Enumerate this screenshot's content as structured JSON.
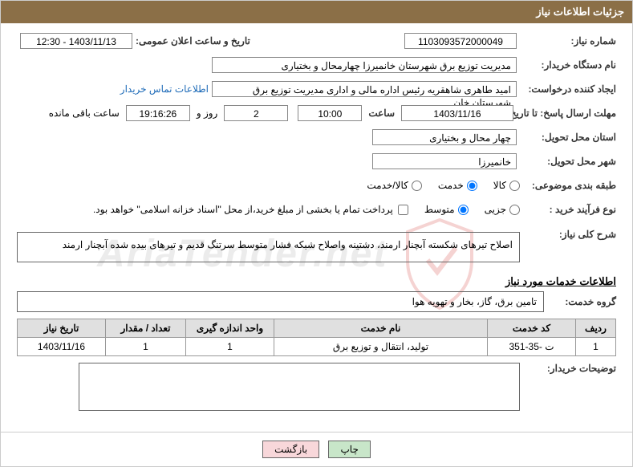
{
  "header": {
    "title": "جزئیات اطلاعات نیاز"
  },
  "fields": {
    "need_no_label": "شماره نیاز:",
    "need_no": "1103093572000049",
    "announce_label": "تاریخ و ساعت اعلان عمومی:",
    "announce_dt": "1403/11/13 - 12:30",
    "buyer_org_label": "نام دستگاه خریدار:",
    "buyer_org": "مدیریت توزیع برق شهرستان خانمیرزا چهارمحال و بختیاری",
    "requester_label": "ایجاد کننده درخواست:",
    "requester": "امید طاهری شاهقریه رئیس اداره مالی و اداری مدیریت توزیع برق شهرستان خان",
    "buyer_contact_link": "اطلاعات تماس خریدار",
    "deadline_label": "مهلت ارسال پاسخ: تا تاریخ:",
    "deadline_date": "1403/11/16",
    "time_label": "ساعت",
    "deadline_time": "10:00",
    "days_count": "2",
    "days_and": "روز و",
    "remain_time": "19:16:26",
    "remain_label": "ساعت باقی مانده",
    "province_label": "استان محل تحویل:",
    "province": "چهار محال و بختیاری",
    "city_label": "شهر محل تحویل:",
    "city": "خانمیرزا",
    "cat_label": "طبقه بندی موضوعی:",
    "cat_goods": "کالا",
    "cat_service": "خدمت",
    "cat_both": "کالا/خدمت",
    "process_label": "نوع فرآیند خرید :",
    "process_small": "جزیی",
    "process_mid": "متوسط",
    "pay_note": "پرداخت تمام یا بخشی از مبلغ خرید،از محل \"اسناد خزانه اسلامی\" خواهد بود.",
    "desc_label": "شرح کلی نیاز:",
    "desc_text": "اصلاح تیرهای شکسته آبچنار ارمند، دشتینه واصلاح شبکه فشار متوسط سرتنگ قدیم و تیرهای بیده شده آبچنار ارمند",
    "service_info_title": "اطلاعات خدمات مورد نیاز",
    "group_label": "گروه خدمت:",
    "group_value": "تامین برق، گاز، بخار و تهویه هوا",
    "buyer_notes_label": "توضیحات خریدار:"
  },
  "table": {
    "headers": {
      "row": "ردیف",
      "code": "کد خدمت",
      "name": "نام خدمت",
      "unit": "واحد اندازه گیری",
      "qty": "تعداد / مقدار",
      "date": "تاریخ نیاز"
    },
    "rows": [
      {
        "idx": "1",
        "code": "ت -35-351",
        "name": "تولید، انتقال و توزیع برق",
        "unit": "1",
        "qty": "1",
        "date": "1403/11/16"
      }
    ]
  },
  "buttons": {
    "print": "چاپ",
    "back": "بازگشت"
  },
  "watermark": "AriaTender.net"
}
